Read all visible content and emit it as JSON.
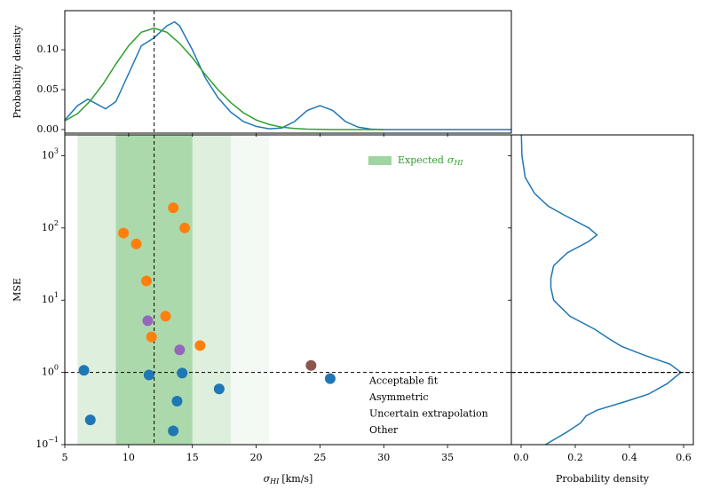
{
  "chart_data": [
    {
      "type": "line",
      "ylabel": "Probability density",
      "vline": 12,
      "ylim": [
        -0.0045,
        0.149
      ],
      "yticks": [
        {
          "value": 0,
          "label": "0.00"
        },
        {
          "value": 0.05,
          "label": "0.05"
        },
        {
          "value": 0.1,
          "label": "0.10"
        }
      ],
      "series": [
        {
          "color": "#1f77b4",
          "x": [
            5,
            6,
            6.8,
            7.5,
            8.2,
            9,
            10,
            11,
            12,
            13,
            13.6,
            14,
            15,
            16,
            17,
            18,
            19,
            20,
            21,
            22,
            23,
            24,
            25,
            26,
            27,
            28,
            29,
            30,
            35,
            40
          ],
          "values": [
            0.012,
            0.03,
            0.038,
            0.032,
            0.026,
            0.035,
            0.07,
            0.105,
            0.115,
            0.13,
            0.135,
            0.13,
            0.1,
            0.065,
            0.04,
            0.022,
            0.01,
            0.004,
            0.001,
            0.002,
            0.01,
            0.024,
            0.03,
            0.024,
            0.01,
            0.003,
            0.0005,
            0,
            0,
            0
          ]
        },
        {
          "color": "#2ca02c",
          "x": [
            5,
            6,
            7,
            8,
            9,
            10,
            11,
            12,
            13,
            14,
            15,
            16,
            17,
            18,
            19,
            20,
            21,
            22,
            23,
            24,
            25,
            26,
            30
          ],
          "values": [
            0.011,
            0.02,
            0.036,
            0.057,
            0.082,
            0.105,
            0.122,
            0.127,
            0.122,
            0.108,
            0.09,
            0.069,
            0.05,
            0.034,
            0.021,
            0.012,
            0.0065,
            0.003,
            0.0013,
            0.0005,
            0.0002,
            0,
            0
          ]
        }
      ]
    },
    {
      "type": "scatter",
      "ylabel": "MSE",
      "xlabel": {
        "symbol": "σ",
        "subscript": "HI",
        "unit": "[km/s]"
      },
      "xlim": [
        5,
        40
      ],
      "xticks": [
        5,
        10,
        15,
        20,
        25,
        30,
        35
      ],
      "ylim": [
        0.1,
        1940
      ],
      "ylog": true,
      "yticks": [
        {
          "value": 0.1,
          "label": "10",
          "exponent": "−1"
        },
        {
          "value": 1,
          "label": "10",
          "exponent": "0"
        },
        {
          "value": 10,
          "label": "10",
          "exponent": "1"
        },
        {
          "value": 100,
          "label": "10",
          "exponent": "2"
        },
        {
          "value": 1000,
          "label": "10",
          "exponent": "3"
        }
      ],
      "vline": 12,
      "hline": 1,
      "band_color": "#2ca02c",
      "bands": [
        {
          "range": [
            6,
            21
          ],
          "alpha": 0.06
        },
        {
          "range": [
            6,
            18
          ],
          "alpha": 0.1
        },
        {
          "range": [
            9,
            15
          ],
          "alpha": 0.28
        }
      ],
      "band_legend": {
        "text": "Expected",
        "symbol": "σ",
        "subscript": "HI",
        "color": "#2ca02c"
      },
      "legend_position": "lower right",
      "series": [
        {
          "name": "Acceptable fit",
          "color": "#1f77b4",
          "x": [
            6.5,
            7,
            11.6,
            14.2,
            13.8,
            17.1,
            13.5,
            25.8
          ],
          "values": [
            1.07,
            0.22,
            0.92,
            0.98,
            0.4,
            0.59,
            0.155,
            0.82
          ]
        },
        {
          "name": "Asymmetric",
          "color": "#ff7f0e",
          "x": [
            9.6,
            10.6,
            13.5,
            14.4,
            11.4,
            12.9,
            11.8,
            15.6
          ],
          "values": [
            85,
            60,
            190,
            100,
            18.5,
            6,
            3.1,
            2.35
          ]
        },
        {
          "name": "Uncertain extrapolation",
          "color": "#9467bd",
          "x": [
            11.5,
            14.0
          ],
          "values": [
            5.2,
            2.05
          ]
        },
        {
          "name": "Other",
          "color": "#8c564b",
          "x": [
            24.3
          ],
          "values": [
            1.25
          ]
        }
      ]
    },
    {
      "type": "line",
      "orientation": "horizontal",
      "xlabel": "Probability density",
      "hline": 1,
      "xlim": [
        -0.036,
        0.636
      ],
      "xticks": [
        {
          "value": 0,
          "label": "0.0"
        },
        {
          "value": 0.2,
          "label": "0.2"
        },
        {
          "value": 0.4,
          "label": "0.4"
        },
        {
          "value": 0.6,
          "label": "0.6"
        }
      ],
      "series": [
        {
          "color": "#1f77b4",
          "y": [
            0.1,
            0.15,
            0.2,
            0.25,
            0.3,
            0.4,
            0.5,
            0.7,
            1.0,
            1.3,
            1.7,
            2.3,
            3,
            4,
            6,
            10,
            15,
            20,
            30,
            45,
            65,
            80,
            100,
            150,
            200,
            300,
            500,
            1000,
            1940
          ],
          "values": [
            0.09,
            0.17,
            0.22,
            0.24,
            0.28,
            0.39,
            0.47,
            0.54,
            0.59,
            0.55,
            0.46,
            0.37,
            0.32,
            0.27,
            0.18,
            0.12,
            0.11,
            0.11,
            0.12,
            0.17,
            0.25,
            0.28,
            0.25,
            0.16,
            0.1,
            0.05,
            0.015,
            0.003,
            0.001
          ]
        }
      ]
    }
  ]
}
